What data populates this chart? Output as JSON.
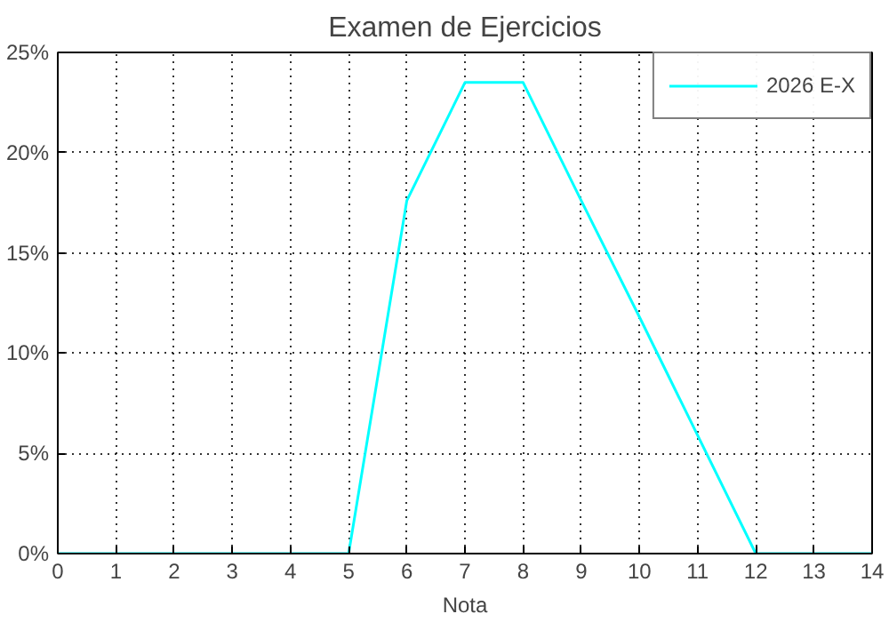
{
  "chart_data": {
    "type": "line",
    "title": "Examen de Ejercicios",
    "xlabel": "Nota",
    "x": [
      0,
      1,
      2,
      3,
      4,
      5,
      6,
      7,
      8,
      9,
      10,
      11,
      12,
      13,
      14
    ],
    "series": [
      {
        "name": "2026 E-X",
        "color": "#00ffff",
        "values": [
          0,
          0,
          0,
          0,
          0,
          0,
          17.6,
          23.5,
          23.5,
          17.6,
          11.8,
          5.9,
          0,
          0,
          0
        ]
      }
    ],
    "xlim": [
      0,
      14
    ],
    "xticks": [
      0,
      1,
      2,
      3,
      4,
      5,
      6,
      7,
      8,
      9,
      10,
      11,
      12,
      13,
      14
    ],
    "ylim": [
      0,
      25
    ],
    "yticks": [
      {
        "value": 0,
        "label": "0%"
      },
      {
        "value": 5,
        "label": "5%"
      },
      {
        "value": 10,
        "label": "10%"
      },
      {
        "value": 15,
        "label": "15%"
      },
      {
        "value": 20,
        "label": "20%"
      },
      {
        "value": 25,
        "label": "25%"
      }
    ],
    "grid": true,
    "legend": "top right",
    "marker": "none",
    "line_style": "solid"
  }
}
